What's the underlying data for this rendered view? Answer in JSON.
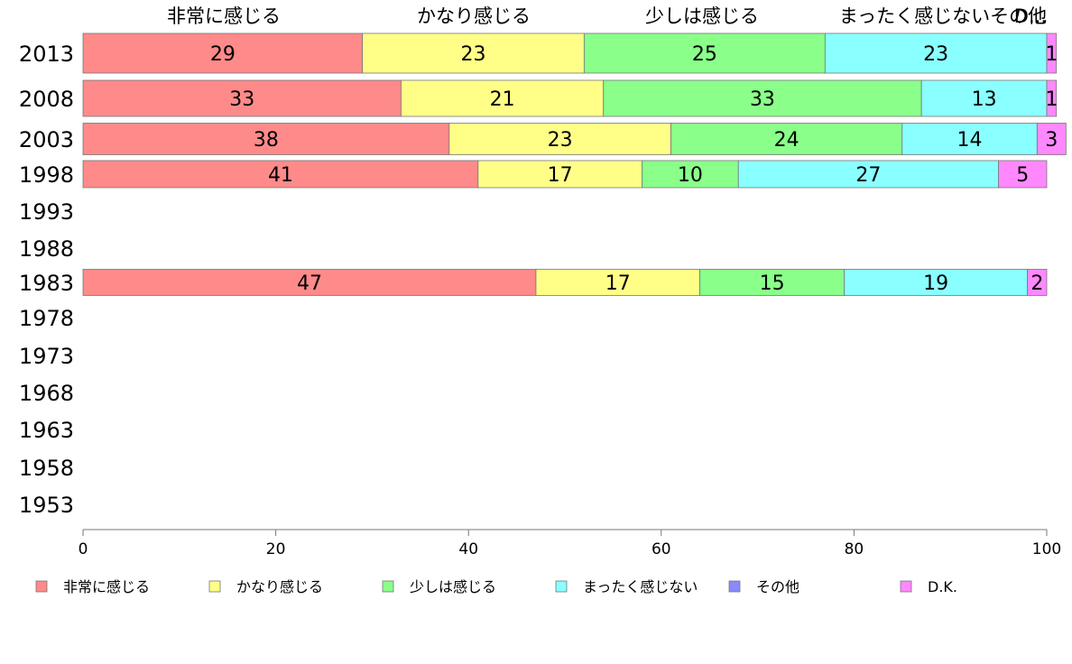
{
  "chart_data": {
    "type": "bar",
    "orientation": "horizontal",
    "stacked": true,
    "categories": [
      "2013",
      "2008",
      "2003",
      "1998",
      "1993",
      "1988",
      "1983",
      "1978",
      "1973",
      "1968",
      "1963",
      "1958",
      "1953"
    ],
    "top_labels": [
      "非常に感じる",
      "かなり感じる",
      "少しは感じる",
      "まったく感じないその他",
      "D..."
    ],
    "series": [
      {
        "name": "非常に感じる",
        "color": "#ff8a8a",
        "values": [
          29,
          33,
          38,
          41,
          null,
          null,
          47,
          null,
          null,
          null,
          null,
          null,
          null
        ]
      },
      {
        "name": "かなり感じる",
        "color": "#ffff88",
        "values": [
          23,
          21,
          23,
          17,
          null,
          null,
          17,
          null,
          null,
          null,
          null,
          null,
          null
        ]
      },
      {
        "name": "少しは感じる",
        "color": "#8aff8a",
        "values": [
          25,
          33,
          24,
          10,
          null,
          null,
          15,
          null,
          null,
          null,
          null,
          null,
          null
        ]
      },
      {
        "name": "まったく感じない",
        "color": "#8affff",
        "values": [
          23,
          13,
          14,
          27,
          null,
          null,
          19,
          null,
          null,
          null,
          null,
          null,
          null
        ]
      },
      {
        "name": "その他",
        "color": "#8a8aff",
        "values": [
          0,
          0,
          0,
          0,
          null,
          null,
          0,
          null,
          null,
          null,
          null,
          null,
          null
        ]
      },
      {
        "name": "D.K.",
        "color": "#ff88ff",
        "values": [
          1,
          1,
          3,
          5,
          null,
          null,
          2,
          null,
          null,
          null,
          null,
          null,
          null
        ]
      }
    ],
    "xlim": [
      0,
      100
    ],
    "xticks": [
      0,
      20,
      40,
      60,
      80,
      100
    ],
    "legend_position": "bottom",
    "grid": false
  }
}
